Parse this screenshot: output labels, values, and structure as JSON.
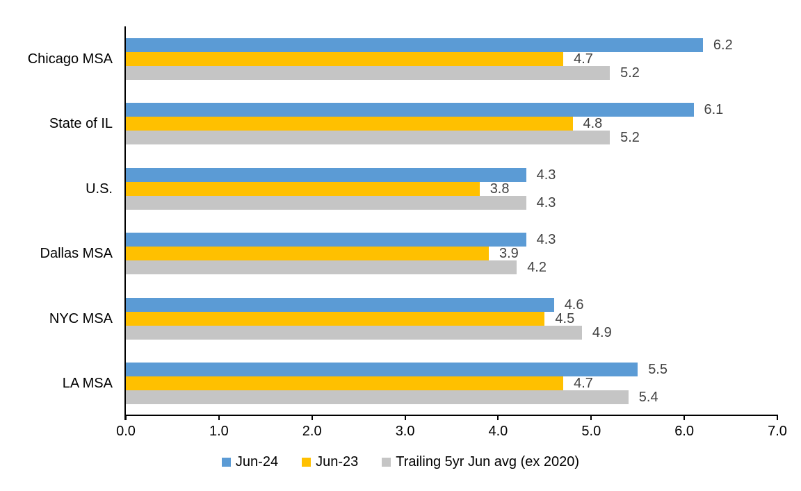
{
  "chart_data": {
    "type": "bar",
    "orientation": "horizontal",
    "title": "",
    "categories": [
      "Chicago MSA",
      "State of IL",
      "U.S.",
      "Dallas MSA",
      "NYC MSA",
      "LA MSA"
    ],
    "series": [
      {
        "name": "Jun-24",
        "color": "#5B9BD5",
        "values": [
          6.2,
          6.1,
          4.3,
          4.3,
          4.6,
          5.5
        ]
      },
      {
        "name": "Jun-23",
        "color": "#FFC000",
        "values": [
          4.7,
          4.8,
          3.8,
          3.9,
          4.5,
          4.7
        ]
      },
      {
        "name": "Trailing 5yr Jun avg (ex 2020)",
        "color": "#C5C5C5",
        "values": [
          5.2,
          5.2,
          4.3,
          4.2,
          4.9,
          5.4
        ]
      }
    ],
    "xlim": [
      0,
      7
    ],
    "x_tick_values": [
      0,
      1,
      2,
      3,
      4,
      5,
      6,
      7
    ],
    "x_tick_labels": [
      "0.0",
      "1.0",
      "2.0",
      "3.0",
      "4.0",
      "5.0",
      "6.0",
      "7.0"
    ],
    "data_labels": true,
    "data_label_decimals": 1,
    "grid": false,
    "legend_position": "bottom",
    "colors": {
      "background": "#FFFFFF",
      "axis": "#000000",
      "tick_text": "#000000",
      "category_text": "#000000",
      "value_label_text": "#404040",
      "legend_text": "#000000"
    }
  }
}
